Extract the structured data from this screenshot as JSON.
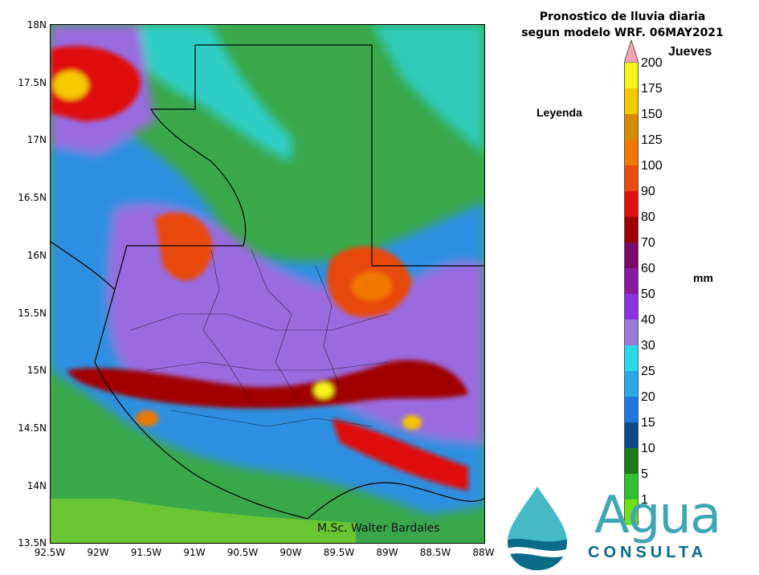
{
  "title_line1": "Pronostico de lluvia diaria",
  "title_line2": "segun modelo WRF.  06MAY2021",
  "day": "Jueves",
  "legend_title": "Leyenda",
  "unit": "mm",
  "watermark": "M.Sc. Walter Bardales",
  "logo": {
    "name": "Agua",
    "sub": "CONSULTA"
  },
  "lat_labels": [
    "18N",
    "17.5N",
    "17N",
    "16.5N",
    "16N",
    "15.5N",
    "15N",
    "14.5N",
    "14N",
    "13.5N"
  ],
  "lon_labels": [
    "92.5W",
    "92W",
    "91.5W",
    "91W",
    "90.5W",
    "90W",
    "89.5W",
    "89W",
    "88.5W",
    "88W"
  ],
  "colorbar": {
    "ticks": [
      "200",
      "175",
      "150",
      "125",
      "100",
      "90",
      "80",
      "70",
      "60",
      "50",
      "40",
      "30",
      "25",
      "20",
      "15",
      "10",
      "5",
      "1"
    ],
    "colors": [
      "#f5f51a",
      "#f5c800",
      "#d68a00",
      "#f07800",
      "#e84a10",
      "#e01010",
      "#a00000",
      "#7a0a6a",
      "#8a1aa0",
      "#8c32e0",
      "#9a78da",
      "#2ad8e6",
      "#28a8e8",
      "#1e78e0",
      "#0a4a8a",
      "#1a7a1a",
      "#2ec02e",
      "#72e018"
    ],
    "top_arrow_color": "#f4a6b0"
  },
  "colors": {
    "green": "#3aa84a",
    "light_green": "#7ed12a",
    "blue": "#2f8fe0",
    "cyan": "#2ad8e6",
    "purple": "#9a6adf",
    "magenta": "#8a1aa0",
    "red": "#e01010",
    "orange": "#f07800",
    "yellow": "#f5f51a"
  }
}
